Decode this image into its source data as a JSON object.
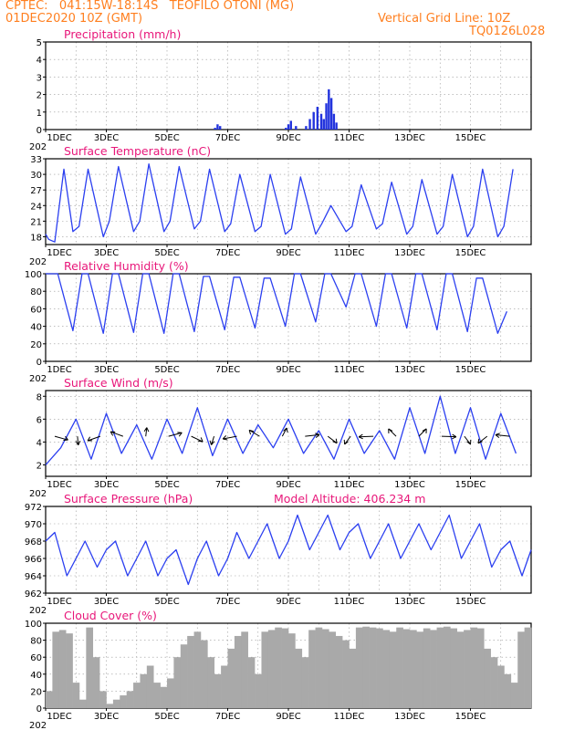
{
  "header": {
    "line1": "CPTEC:   041:15W-18:14S   TEOFILO OTONI (MG)",
    "line2": "01DEC2020 10Z (GMT)",
    "grid_note": "Vertical Grid Line: 10Z",
    "code": "TQ0126L028"
  },
  "colors": {
    "header": "#ff7f1f",
    "title": "#e8177a",
    "line": "#2b3ff0",
    "bar": "#2233dd",
    "cloud": "#a9a9a9",
    "arrow": "#000000"
  },
  "x_ticks": [
    "1DEC",
    "3DEC",
    "5DEC",
    "7DEC",
    "9DEC",
    "11DEC",
    "13DEC",
    "15DEC"
  ],
  "x_year_fragment": "202",
  "chart_data": [
    {
      "type": "bar",
      "title": "Precipitation (mm/h)",
      "ylim": [
        0,
        5
      ],
      "yticks": [
        "0",
        "1",
        "2",
        "3",
        "4",
        "5"
      ],
      "x": [
        "7DEC 00Z",
        "7DEC 02Z",
        "7DEC 04Z",
        "9DEC 08Z",
        "9DEC 10Z",
        "9DEC 12Z",
        "9DEC 16Z",
        "10DEC 00Z",
        "10DEC 03Z",
        "10DEC 06Z",
        "10DEC 09Z",
        "10DEC 12Z",
        "10DEC 14Z",
        "10DEC 16Z",
        "10DEC 18Z",
        "10DEC 20Z",
        "10DEC 22Z",
        "11DEC 00Z"
      ],
      "values": [
        0.1,
        0.3,
        0.2,
        0.1,
        0.3,
        0.5,
        0.2,
        0.2,
        0.6,
        1.0,
        1.3,
        0.9,
        0.6,
        1.5,
        2.3,
        1.8,
        0.9,
        0.4
      ]
    },
    {
      "type": "line",
      "title": "Surface Temperature (nC)",
      "ylim": [
        16.5,
        33
      ],
      "yticks": [
        "18",
        "21",
        "24",
        "27",
        "30",
        "33"
      ],
      "series": [
        {
          "x_days": [
            0,
            0.1,
            0.3,
            0.6,
            0.9,
            1.1,
            1.4,
            1.9,
            2.1,
            2.4,
            2.9,
            3.1,
            3.4,
            3.9,
            4.1,
            4.4,
            4.9,
            5.1,
            5.4,
            5.9,
            6.1,
            6.4,
            6.9,
            7.1,
            7.4,
            7.9,
            8.1,
            8.4,
            8.9,
            9.1,
            9.4,
            9.9,
            10.1,
            10.4,
            10.9,
            11.1,
            11.4,
            11.9,
            12.1,
            12.4,
            12.9,
            13.1,
            13.4,
            13.9,
            14.1,
            14.4,
            14.9,
            15.1,
            15.4
          ],
          "values": [
            18.5,
            17.5,
            17,
            31,
            19,
            20,
            31,
            18,
            21,
            31.5,
            19,
            21,
            32,
            19,
            21,
            31.5,
            19.5,
            21,
            31,
            19,
            20.5,
            30,
            19,
            20,
            30,
            18.5,
            19.5,
            29.5,
            18.5,
            20.5,
            24,
            19,
            20,
            28,
            19.5,
            20.5,
            28.5,
            18.5,
            20,
            29,
            18.5,
            20,
            30,
            18,
            20,
            31,
            18,
            20,
            31
          ]
        }
      ]
    },
    {
      "type": "line",
      "title": "Relative Humidity (%)",
      "ylim": [
        0,
        100
      ],
      "yticks": [
        "0",
        "20",
        "40",
        "60",
        "80",
        "100"
      ],
      "series": [
        {
          "x_days": [
            0,
            0.4,
            0.9,
            1.2,
            1.4,
            1.9,
            2.2,
            2.4,
            2.9,
            3.2,
            3.4,
            3.9,
            4.2,
            4.4,
            4.9,
            5.2,
            5.4,
            5.9,
            6.2,
            6.4,
            6.9,
            7.2,
            7.4,
            7.9,
            8.2,
            8.4,
            8.9,
            9.2,
            9.4,
            9.9,
            10.2,
            10.4,
            10.9,
            11.2,
            11.4,
            11.9,
            12.2,
            12.4,
            12.9,
            13.2,
            13.4,
            13.9,
            14.2,
            14.4,
            14.9,
            15.2
          ],
          "values": [
            100,
            100,
            35,
            100,
            100,
            32,
            100,
            100,
            33,
            100,
            100,
            32,
            100,
            100,
            34,
            97,
            97,
            36,
            96,
            96,
            38,
            95,
            95,
            40,
            100,
            100,
            45,
            100,
            100,
            62,
            100,
            100,
            40,
            100,
            100,
            38,
            100,
            100,
            36,
            100,
            100,
            34,
            95,
            95,
            32,
            57
          ]
        }
      ]
    },
    {
      "type": "line",
      "title": "Surface Wind (m/s)",
      "ylim": [
        1,
        8.5
      ],
      "yticks": [
        "2",
        "4",
        "6",
        "8"
      ],
      "series": [
        {
          "x_days": [
            0,
            0.5,
            1,
            1.5,
            2,
            2.5,
            3,
            3.5,
            4,
            4.5,
            5,
            5.5,
            6,
            6.5,
            7,
            7.5,
            8,
            8.5,
            9,
            9.5,
            10,
            10.5,
            11,
            11.5,
            12,
            12.5,
            13,
            13.5,
            14,
            14.5,
            15,
            15.5
          ],
          "values": [
            2,
            3.5,
            6,
            2.5,
            6.5,
            3,
            5.5,
            2.5,
            6,
            3,
            7,
            2.8,
            6,
            3,
            5.5,
            3.5,
            6,
            3,
            5,
            2.5,
            6,
            3,
            5,
            2.5,
            7,
            3,
            8,
            3,
            7,
            2.5,
            6.5,
            3
          ]
        }
      ]
    },
    {
      "type": "line",
      "title": "Surface Pressure (hPa)",
      "annotation": "Model Altitude: 406.234 m",
      "ylim": [
        962,
        972
      ],
      "yticks": [
        "962",
        "964",
        "966",
        "968",
        "970",
        "972"
      ],
      "series": [
        {
          "x_days": [
            0,
            0.3,
            0.7,
            1,
            1.3,
            1.7,
            2,
            2.3,
            2.7,
            3,
            3.3,
            3.7,
            4,
            4.3,
            4.7,
            5,
            5.3,
            5.7,
            6,
            6.3,
            6.7,
            7,
            7.3,
            7.7,
            8,
            8.3,
            8.7,
            9,
            9.3,
            9.7,
            10,
            10.3,
            10.7,
            11,
            11.3,
            11.7,
            12,
            12.3,
            12.7,
            13,
            13.3,
            13.7,
            14,
            14.3,
            14.7,
            15,
            15.3,
            15.7,
            16
          ],
          "values": [
            968,
            969,
            964,
            966,
            968,
            965,
            967,
            968,
            964,
            966,
            968,
            964,
            966,
            967,
            963,
            966,
            968,
            964,
            966,
            969,
            966,
            968,
            970,
            966,
            968,
            971,
            967,
            969,
            971,
            967,
            969,
            970,
            966,
            968,
            970,
            966,
            968,
            970,
            967,
            969,
            971,
            966,
            968,
            970,
            965,
            967,
            968,
            964,
            967
          ]
        }
      ]
    },
    {
      "type": "bar",
      "title": "Cloud Cover (%)",
      "ylim": [
        0,
        100
      ],
      "yticks": [
        "0",
        "20",
        "40",
        "60",
        "80",
        "100"
      ],
      "x_days_range": [
        0,
        16
      ],
      "values": [
        20,
        90,
        92,
        88,
        30,
        10,
        95,
        60,
        20,
        5,
        10,
        15,
        20,
        30,
        40,
        50,
        30,
        25,
        35,
        60,
        75,
        85,
        90,
        80,
        60,
        40,
        50,
        70,
        85,
        90,
        60,
        40,
        90,
        92,
        95,
        94,
        88,
        70,
        60,
        92,
        95,
        93,
        90,
        85,
        80,
        70,
        95,
        96,
        95,
        94,
        92,
        90,
        95,
        93,
        92,
        90,
        94,
        92,
        95,
        96,
        94,
        90,
        92,
        95,
        94,
        70,
        60,
        50,
        40,
        30,
        90,
        95
      ]
    }
  ]
}
